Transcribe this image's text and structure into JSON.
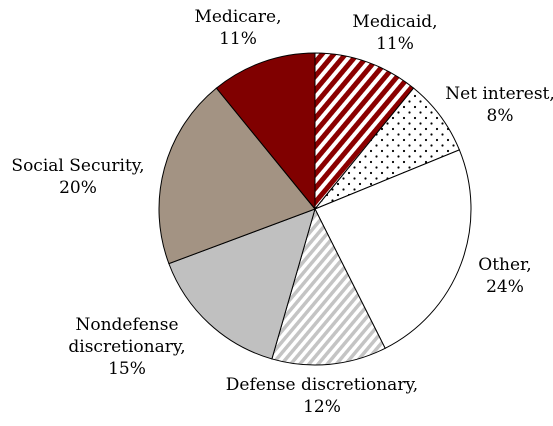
{
  "chart_data": {
    "type": "pie",
    "title": "",
    "slices": [
      {
        "label": "Medicaid",
        "value": 11,
        "value_label": "11%",
        "color": "#7b0000",
        "pattern": "diagonal-stripes-red"
      },
      {
        "label": "Net interest",
        "value": 8,
        "value_label": "8%",
        "color": "#ffffff",
        "pattern": "dots"
      },
      {
        "label": "Other",
        "value": 24,
        "value_label": "24%",
        "color": "#ffffff",
        "pattern": "solid"
      },
      {
        "label": "Defense discretionary",
        "value": 12,
        "value_label": "12%",
        "color": "#c8c8c8",
        "pattern": "diagonal-stripes-gray"
      },
      {
        "label": "Nondefense discretionary",
        "value": 15,
        "value_label": "15%",
        "color": "#c0c0c0",
        "pattern": "solid"
      },
      {
        "label": "Social Security",
        "value": 20,
        "value_label": "20%",
        "color": "#a39383",
        "pattern": "solid"
      },
      {
        "label": "Medicare",
        "value": 11,
        "value_label": "11%",
        "color": "#800000",
        "pattern": "solid"
      }
    ],
    "label_text": [
      [
        "Medicaid,",
        "11%"
      ],
      [
        "Net interest,",
        "8%"
      ],
      [
        "Other,",
        "24%"
      ],
      [
        "Defense discretionary,",
        "12%"
      ],
      [
        "Nondefense",
        "discretionary,",
        "15%"
      ],
      [
        "Social Security,",
        "20%"
      ],
      [
        "Medicare,",
        "11%"
      ]
    ]
  }
}
